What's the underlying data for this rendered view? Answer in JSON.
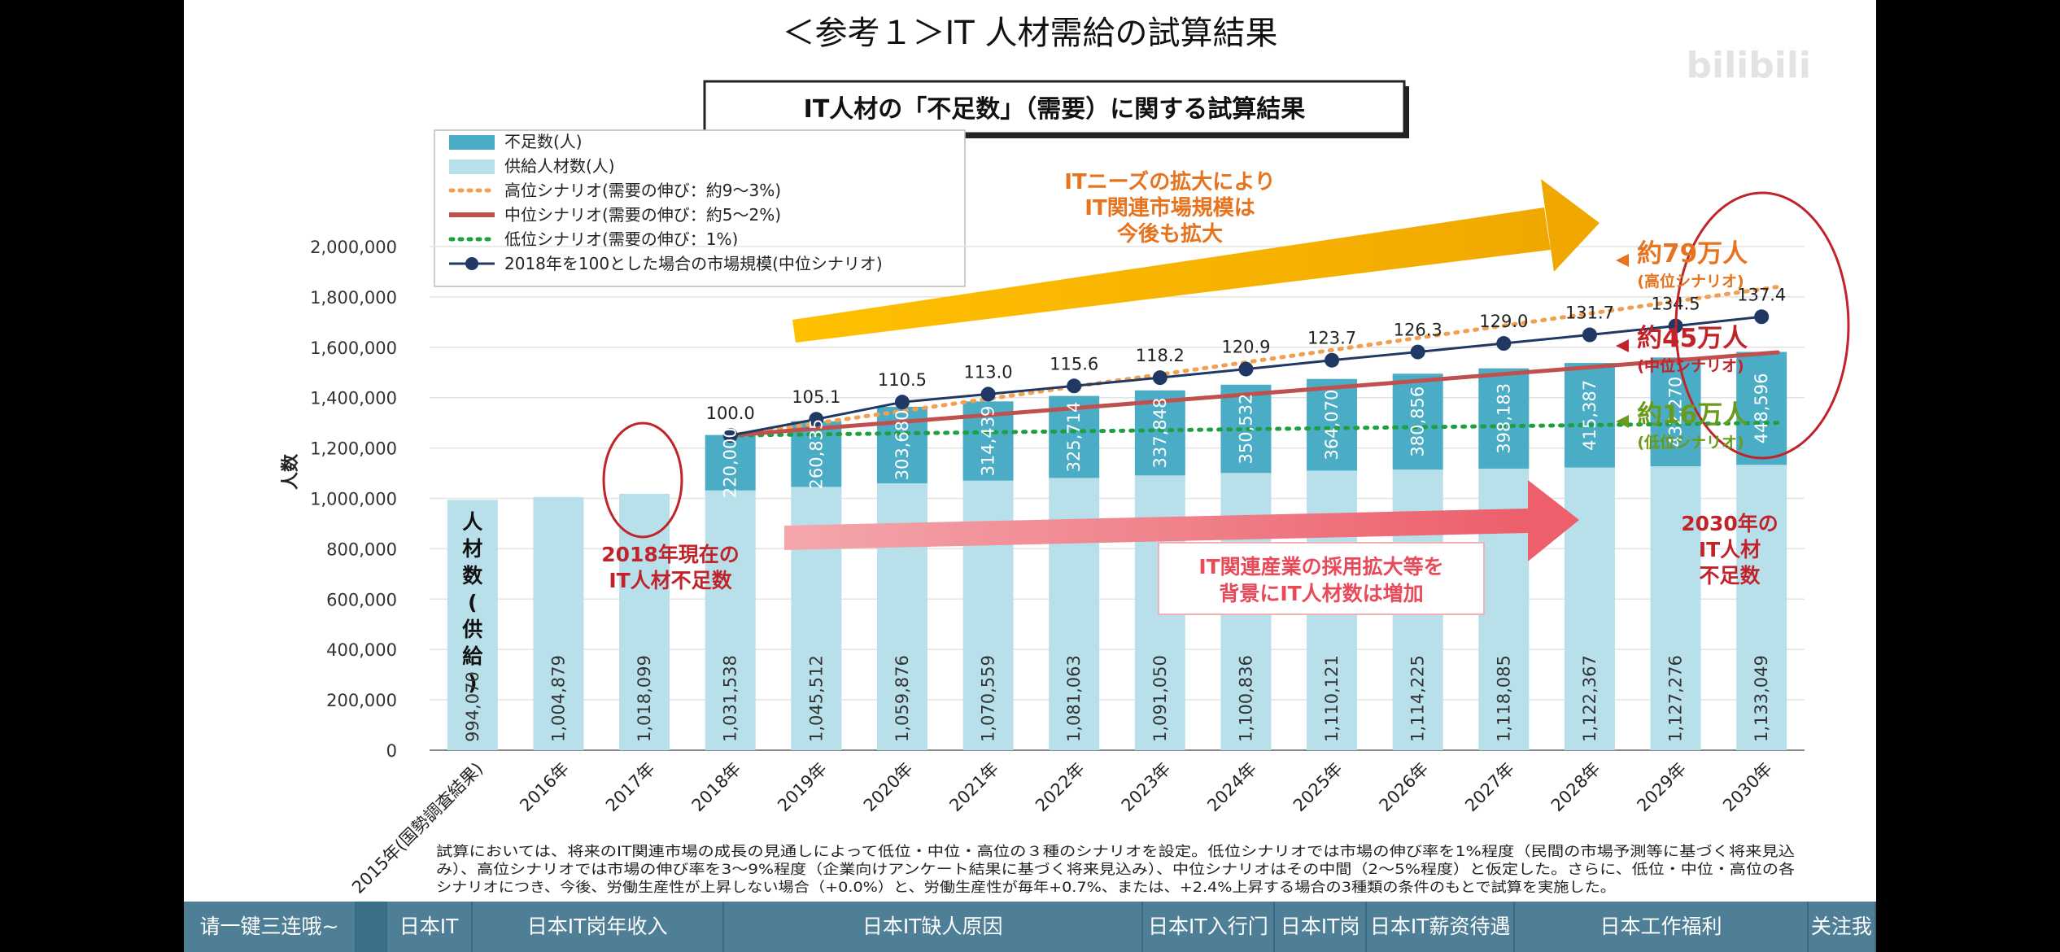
{
  "page_title": "＜参考１＞IT 人材需給の試算結果",
  "box_title": "IT人材の「不足数」（需要）に関する試算結果",
  "watermark": "bilibili",
  "legend": [
    {
      "label": "不足数(人)",
      "kind": "bar",
      "color": "#4bacc6"
    },
    {
      "label": "供給人材数(人)",
      "kind": "bar",
      "color": "#b8e0ea"
    },
    {
      "label": "高位シナリオ(需要の伸び：約9〜3%)",
      "kind": "dotted",
      "color": "#f0a050"
    },
    {
      "label": "中位シナリオ(需要の伸び：約5〜2%)",
      "kind": "solid",
      "color": "#c0504d"
    },
    {
      "label": "低位シナリオ(需要の伸び：1%)",
      "kind": "dotted",
      "color": "#1ea040"
    },
    {
      "label": "2018年を100とした場合の市場規模(中位シナリオ)",
      "kind": "marker",
      "color": "#1f3864"
    }
  ],
  "chart_data": {
    "type": "bar",
    "ylabel": "人数",
    "ylim": [
      0,
      2000000
    ],
    "yticks": [
      "0",
      "200,000",
      "400,000",
      "600,000",
      "800,000",
      "1,000,000",
      "1,200,000",
      "1,400,000",
      "1,600,000",
      "1,800,000",
      "2,000,000"
    ],
    "categories": [
      "2015年(国勢調査結果)",
      "2016年",
      "2017年",
      "2018年",
      "2019年",
      "2020年",
      "2021年",
      "2022年",
      "2023年",
      "2024年",
      "2025年",
      "2026年",
      "2027年",
      "2028年",
      "2029年",
      "2030年"
    ],
    "supply": [
      994070,
      1004879,
      1018099,
      1031538,
      1045512,
      1059876,
      1070559,
      1081063,
      1091050,
      1100836,
      1110121,
      1114225,
      1118085,
      1122367,
      1127276,
      1133049
    ],
    "supply_labels": [
      "994,070",
      "1,004,879",
      "1,018,099",
      "1,031,538",
      "1,045,512",
      "1,059,876",
      "1,070,559",
      "1,081,063",
      "1,091,050",
      "1,100,836",
      "1,110,121",
      "1,114,225",
      "1,118,085",
      "1,122,367",
      "1,127,276",
      "1,133,049"
    ],
    "shortage": [
      null,
      null,
      null,
      220000,
      260835,
      303680,
      314439,
      325714,
      337848,
      350532,
      364070,
      380856,
      398183,
      415387,
      432270,
      448596
    ],
    "shortage_labels": [
      "",
      "",
      "",
      "220,000",
      "260,835",
      "303,680",
      "314,439",
      "325,714",
      "337,848",
      "350,532",
      "364,070",
      "380,856",
      "398,183",
      "415,387",
      "432,270",
      "448,596"
    ],
    "market_index": [
      null,
      null,
      null,
      100.0,
      105.1,
      110.5,
      113.0,
      115.6,
      118.2,
      120.9,
      123.7,
      126.3,
      129.0,
      131.7,
      134.5,
      137.4
    ],
    "market_index_labels": [
      "",
      "",
      "",
      "100.0",
      "105.1",
      "110.5",
      "113.0",
      "115.6",
      "118.2",
      "120.9",
      "123.7",
      "126.3",
      "129.0",
      "131.7",
      "134.5",
      "137.4"
    ],
    "high_scenario_endpoints": [
      1250000,
      1840000
    ],
    "mid_scenario_endpoints": [
      1250000,
      1580000
    ],
    "low_scenario_endpoints": [
      1250000,
      1300000
    ]
  },
  "supply_vertical_label": "人材数(供給)",
  "annotations": {
    "needs_text": [
      "ITニーズの拡大により",
      "IT関連市場規模は",
      "今後も拡大"
    ],
    "hiring_text": [
      "IT関連産業の採用拡大等を",
      "背景にIT人材数は増加"
    ],
    "current_2018": [
      "2018年現在の",
      "IT人材不足数"
    ],
    "high_value": "約79万人",
    "high_sub": "(高位シナリオ)",
    "mid_value": "約45万人",
    "mid_sub": "(中位シナリオ)",
    "low_value": "約16万人",
    "low_sub": "(低位シナリオ)",
    "shortage_2030": [
      "2030年の",
      "IT人材",
      "不足数"
    ],
    "orange": "#e6731e",
    "red": "#c0242a",
    "green": "#6a9a1a"
  },
  "footnote": [
    "試算においては、将来のIT関連市場の成長の見通しによって低位・中位・高位の３種のシナリオを設定。低位シナリオでは市場の伸び率を1%程度（民間の市場予測等に基づく将来見込",
    "み）、高位シナリオでは市場の伸び率を3〜9%程度（企業向けアンケート結果に基づく将来見込み）、中位シナリオはその中間（2〜5%程度）と仮定した。さらに、低位・中位・高位の各",
    "シナリオにつき、今後、労働生産性が上昇しない場合（+0.0%）と、労働生産性が毎年+0.7%、または、+2.4%上昇する場合の3種類の条件のもとで試算を実施した。"
  ],
  "bottom_tabs": [
    {
      "label": "请一键三连哦~",
      "active": false
    },
    {
      "label": "",
      "active": true
    },
    {
      "label": "日本IT",
      "active": false
    },
    {
      "label": "日本IT岗年收入",
      "active": false
    },
    {
      "label": "日本IT缺人原因",
      "active": false
    },
    {
      "label": "日本IT入行门",
      "active": false
    },
    {
      "label": "日本IT岗",
      "active": false
    },
    {
      "label": "日本IT薪资待遇",
      "active": false
    },
    {
      "label": "日本工作福利",
      "active": false
    },
    {
      "label": "关注我",
      "active": false
    }
  ]
}
